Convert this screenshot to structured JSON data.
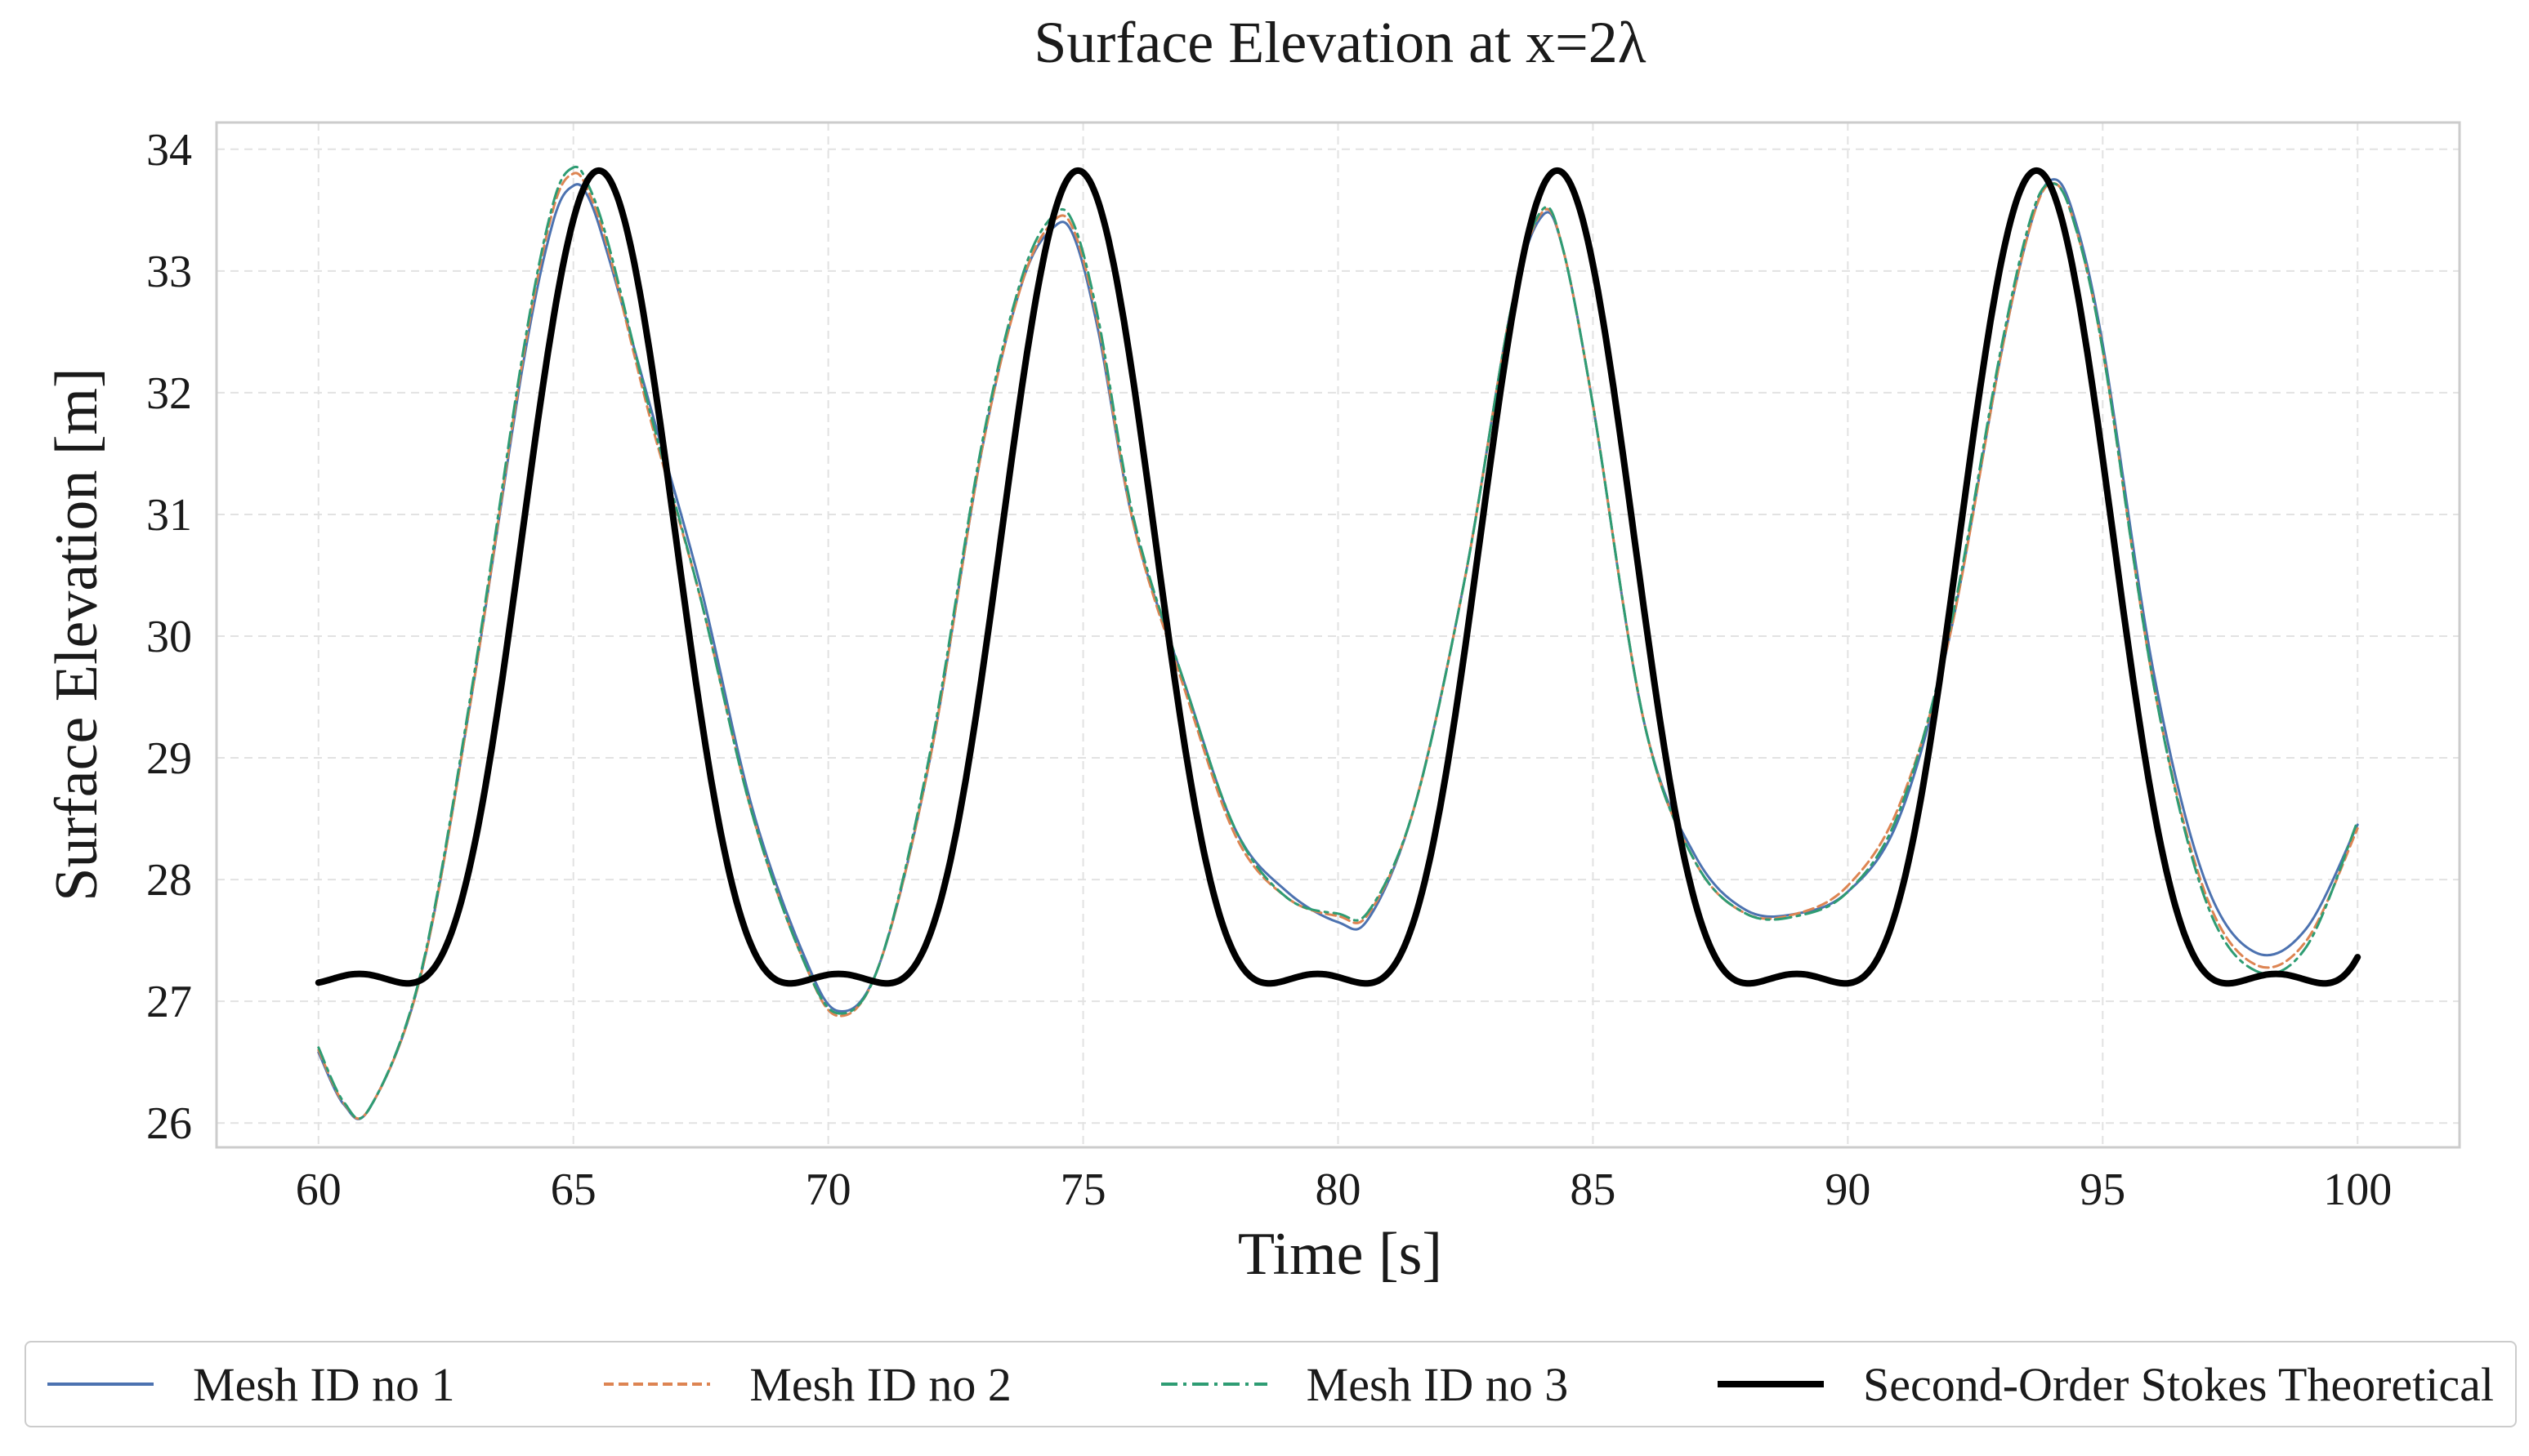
{
  "chart_data": {
    "type": "line",
    "title": "Surface Elevation at x=2λ",
    "xlabel": "Time [s]",
    "ylabel": "Surface Elevation [m]",
    "xlim": [
      58,
      102
    ],
    "ylim": [
      25.8,
      34.22
    ],
    "xticks": [
      60,
      65,
      70,
      75,
      80,
      85,
      90,
      95,
      100
    ],
    "yticks": [
      26,
      27,
      28,
      29,
      30,
      31,
      32,
      33,
      34
    ],
    "grid": true,
    "legend_position": "bottom",
    "series": [
      {
        "name": "Mesh ID no 1",
        "color": "#4c72b0",
        "dash": "solid",
        "x": [
          60,
          60.5,
          61,
          62,
          63,
          64,
          64.6,
          65,
          65.3,
          65.7,
          66.5,
          67.5,
          68.5,
          69.5,
          70.2,
          71,
          72,
          73,
          73.8,
          74.4,
          74.8,
          75.3,
          76,
          77,
          78,
          79,
          80,
          80.6,
          81.5,
          82.5,
          83.4,
          84,
          84.4,
          85,
          86,
          87,
          88,
          89,
          90,
          91,
          92,
          93,
          93.6,
          94,
          94.4,
          95,
          96,
          97,
          98,
          99,
          100
        ],
        "y": [
          26.58,
          26.15,
          26.12,
          27.2,
          29.5,
          32.2,
          33.4,
          33.7,
          33.6,
          33.1,
          31.9,
          30.4,
          28.6,
          27.4,
          26.92,
          27.3,
          29.0,
          31.5,
          32.9,
          33.35,
          33.3,
          32.5,
          30.9,
          29.6,
          28.4,
          27.9,
          27.65,
          27.68,
          28.6,
          30.5,
          32.7,
          33.45,
          33.2,
          31.9,
          29.3,
          28.2,
          27.75,
          27.72,
          27.9,
          28.5,
          30.0,
          32.3,
          33.4,
          33.75,
          33.5,
          32.4,
          29.7,
          28.0,
          27.4,
          27.6,
          28.45
        ]
      },
      {
        "name": "Mesh ID no 2",
        "color": "#dd8452",
        "dash": "dashed",
        "x": [
          60,
          60.5,
          61,
          62,
          63,
          64,
          64.6,
          65,
          65.3,
          65.7,
          66.5,
          67.5,
          68.5,
          69.5,
          70.2,
          71,
          72,
          73,
          73.8,
          74.4,
          74.8,
          75.3,
          76,
          77,
          78,
          79,
          80,
          80.6,
          81.5,
          82.5,
          83.4,
          84,
          84.4,
          85,
          86,
          87,
          88,
          89,
          90,
          91,
          92,
          93,
          93.6,
          94,
          94.4,
          95,
          96,
          97,
          98,
          99,
          100
        ],
        "y": [
          26.6,
          26.16,
          26.12,
          27.2,
          29.5,
          32.25,
          33.5,
          33.8,
          33.65,
          33.15,
          31.8,
          30.3,
          28.55,
          27.35,
          26.88,
          27.3,
          29.0,
          31.5,
          32.9,
          33.4,
          33.35,
          32.55,
          30.9,
          29.55,
          28.35,
          27.85,
          27.7,
          27.72,
          28.6,
          30.5,
          32.7,
          33.48,
          33.2,
          31.9,
          29.3,
          28.15,
          27.72,
          27.72,
          27.95,
          28.6,
          30.0,
          32.3,
          33.4,
          33.72,
          33.45,
          32.35,
          29.6,
          27.9,
          27.3,
          27.5,
          28.42
        ]
      },
      {
        "name": "Mesh ID no 3",
        "color": "#2e9c73",
        "dash": "dashdot",
        "x": [
          60,
          60.5,
          61,
          62,
          63,
          64,
          64.6,
          65,
          65.3,
          65.7,
          66.5,
          67.5,
          68.5,
          69.5,
          70.2,
          71,
          72,
          73,
          73.8,
          74.4,
          74.8,
          75.3,
          76,
          77,
          78,
          79,
          80,
          80.6,
          81.5,
          82.5,
          83.4,
          84,
          84.4,
          85,
          86,
          87,
          88,
          89,
          90,
          91,
          92,
          93,
          93.6,
          94,
          94.4,
          95,
          96,
          97,
          98,
          99,
          100
        ],
        "y": [
          26.62,
          26.17,
          26.12,
          27.22,
          29.55,
          32.3,
          33.55,
          33.85,
          33.7,
          33.2,
          31.85,
          30.3,
          28.55,
          27.35,
          26.9,
          27.3,
          29.05,
          31.55,
          32.95,
          33.45,
          33.4,
          32.6,
          30.95,
          29.6,
          28.4,
          27.85,
          27.72,
          27.74,
          28.6,
          30.5,
          32.7,
          33.5,
          33.2,
          31.9,
          29.3,
          28.15,
          27.72,
          27.7,
          27.9,
          28.55,
          30.05,
          32.35,
          33.45,
          33.72,
          33.45,
          32.35,
          29.6,
          27.85,
          27.25,
          27.45,
          28.48
        ]
      },
      {
        "name": "Second-Order Stokes Theoretical",
        "color": "#000000",
        "dash": "solid",
        "theoretical": {
          "mean": 29.5,
          "a1": 3.3,
          "a2": 1.025,
          "period": 9.4,
          "peak_time": 65.5,
          "t_start": 60,
          "t_end": 100
        }
      }
    ]
  }
}
